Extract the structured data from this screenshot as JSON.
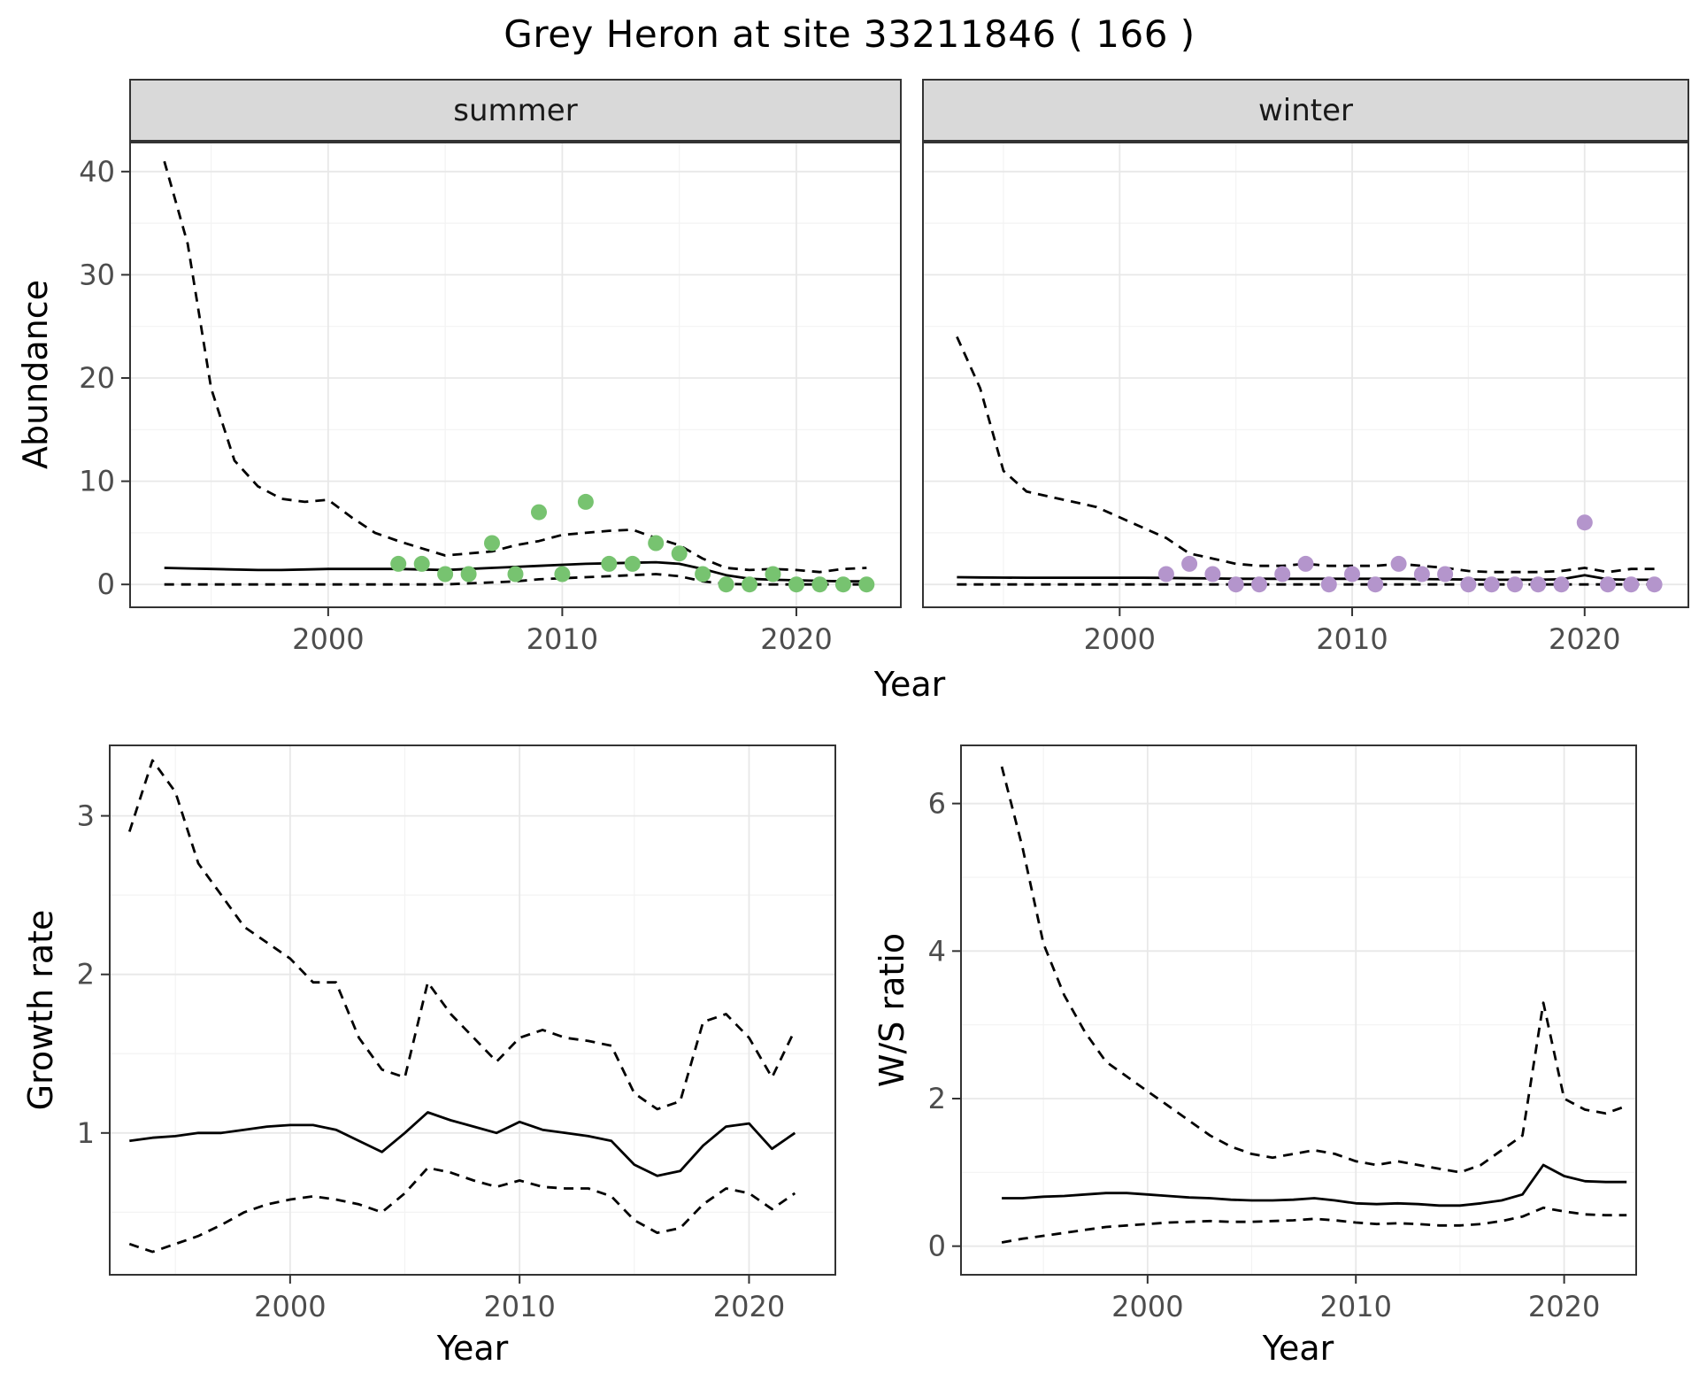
{
  "title": "Grey Heron at site 33211846 ( 166 )",
  "labels": {
    "facet_summer": "summer",
    "facet_winter": "winter",
    "abundance": "Abundance",
    "year": "Year",
    "growth_rate": "Growth rate",
    "ws_ratio": "W/S ratio"
  },
  "colors": {
    "summer_point": "#77c370",
    "winter_point": "#b495cc",
    "line": "#000000",
    "grid_major": "#e8e8e8",
    "grid_minor": "#f3f3f3",
    "strip_bg": "#d9d9d9",
    "border": "#333333",
    "tick_text": "#4d4d4d"
  },
  "chart_data": [
    {
      "id": "abundance_summer",
      "type": "line",
      "facet": "summer",
      "ylabel": "Abundance",
      "xlabel": "Year",
      "xlim": [
        1991.5,
        2024.5
      ],
      "ylim": [
        -2.3,
        42.9
      ],
      "xticks": [
        2000,
        2010,
        2020
      ],
      "yticks": [
        0,
        10,
        20,
        30,
        40
      ],
      "xticks_minor": [
        1995,
        2005,
        2015
      ],
      "yticks_minor": [
        5,
        15,
        25,
        35
      ],
      "years": [
        1993,
        1994,
        1995,
        1996,
        1997,
        1998,
        1999,
        2000,
        2001,
        2002,
        2003,
        2004,
        2005,
        2006,
        2007,
        2008,
        2009,
        2010,
        2011,
        2012,
        2013,
        2014,
        2015,
        2016,
        2017,
        2018,
        2019,
        2020,
        2021,
        2022,
        2023
      ],
      "series": [
        {
          "name": "upper_ci",
          "style": "dashed",
          "values": [
            41,
            33,
            19,
            12,
            9.5,
            8.3,
            8.0,
            8.2,
            6.5,
            5.0,
            4.2,
            3.5,
            2.8,
            3.0,
            3.2,
            3.8,
            4.2,
            4.8,
            5.0,
            5.2,
            5.3,
            4.5,
            3.8,
            2.5,
            1.6,
            1.4,
            1.5,
            1.4,
            1.2,
            1.5,
            1.6
          ]
        },
        {
          "name": "mean",
          "style": "solid",
          "values": [
            1.6,
            1.55,
            1.5,
            1.45,
            1.4,
            1.4,
            1.45,
            1.5,
            1.5,
            1.5,
            1.5,
            1.45,
            1.4,
            1.5,
            1.6,
            1.7,
            1.8,
            1.9,
            2.0,
            2.05,
            2.1,
            2.15,
            2.0,
            1.5,
            0.9,
            0.55,
            0.45,
            0.4,
            0.35,
            0.3,
            0.3
          ]
        },
        {
          "name": "lower_ci",
          "style": "dashed",
          "values": [
            0,
            0,
            0,
            0,
            0,
            0,
            0,
            0,
            0,
            0,
            0,
            0,
            0,
            0.1,
            0.2,
            0.3,
            0.5,
            0.6,
            0.7,
            0.8,
            0.9,
            1.0,
            0.8,
            0.3,
            0.05,
            0,
            0,
            0,
            0,
            0,
            0
          ]
        }
      ],
      "points": {
        "name": "observed_counts_summer",
        "color": "#77c370",
        "years": [
          2003,
          2004,
          2005,
          2006,
          2007,
          2008,
          2009,
          2010,
          2011,
          2012,
          2013,
          2014,
          2015,
          2016,
          2017,
          2018,
          2019,
          2020,
          2021,
          2022,
          2023
        ],
        "values": [
          2,
          2,
          1,
          1,
          4,
          1,
          7,
          1,
          8,
          2,
          2,
          4,
          3,
          1,
          0,
          0,
          1,
          0,
          0,
          0,
          0
        ]
      }
    },
    {
      "id": "abundance_winter",
      "type": "line",
      "facet": "winter",
      "ylabel": "Abundance",
      "xlabel": "Year",
      "xlim": [
        1991.5,
        2024.5
      ],
      "ylim": [
        -2.3,
        42.9
      ],
      "xticks": [
        2000,
        2010,
        2020
      ],
      "yticks": [
        0,
        10,
        20,
        30,
        40
      ],
      "xticks_minor": [
        1995,
        2005,
        2015
      ],
      "yticks_minor": [
        5,
        15,
        25,
        35
      ],
      "years": [
        1993,
        1994,
        1995,
        1996,
        1997,
        1998,
        1999,
        2000,
        2001,
        2002,
        2003,
        2004,
        2005,
        2006,
        2007,
        2008,
        2009,
        2010,
        2011,
        2012,
        2013,
        2014,
        2015,
        2016,
        2017,
        2018,
        2019,
        2020,
        2021,
        2022,
        2023
      ],
      "series": [
        {
          "name": "upper_ci",
          "style": "dashed",
          "values": [
            24,
            19,
            11,
            9,
            8.5,
            8,
            7.5,
            6.5,
            5.5,
            4.5,
            3,
            2.5,
            2,
            1.8,
            1.8,
            2,
            1.8,
            1.8,
            1.8,
            2,
            1.8,
            1.6,
            1.3,
            1.2,
            1.2,
            1.2,
            1.3,
            1.6,
            1.2,
            1.5,
            1.5
          ]
        },
        {
          "name": "mean",
          "style": "solid",
          "values": [
            0.7,
            0.68,
            0.66,
            0.65,
            0.65,
            0.65,
            0.65,
            0.65,
            0.65,
            0.63,
            0.6,
            0.58,
            0.55,
            0.55,
            0.55,
            0.55,
            0.55,
            0.55,
            0.55,
            0.55,
            0.52,
            0.5,
            0.48,
            0.45,
            0.45,
            0.45,
            0.5,
            0.9,
            0.5,
            0.45,
            0.45
          ]
        },
        {
          "name": "lower_ci",
          "style": "dashed",
          "values": [
            0,
            0,
            0,
            0,
            0,
            0,
            0,
            0,
            0,
            0,
            0,
            0,
            0,
            0,
            0,
            0,
            0,
            0,
            0,
            0,
            0,
            0,
            0,
            0,
            0,
            0,
            0,
            0,
            0,
            0,
            0
          ]
        }
      ],
      "points": {
        "name": "observed_counts_winter",
        "color": "#b495cc",
        "years": [
          2002,
          2003,
          2004,
          2005,
          2006,
          2007,
          2008,
          2009,
          2010,
          2011,
          2012,
          2013,
          2014,
          2015,
          2016,
          2017,
          2018,
          2019,
          2020,
          2021,
          2022,
          2023
        ],
        "values": [
          1,
          2,
          1,
          0,
          0,
          1,
          2,
          0,
          1,
          0,
          2,
          1,
          1,
          0,
          0,
          0,
          0,
          0,
          6,
          0,
          0,
          0
        ]
      }
    },
    {
      "id": "growth_rate",
      "type": "line",
      "ylabel": "Growth rate",
      "xlabel": "Year",
      "xlim": [
        1992.1,
        2023.8
      ],
      "ylim": [
        0.1,
        3.45
      ],
      "xticks": [
        2000,
        2010,
        2020
      ],
      "yticks": [
        1,
        2,
        3
      ],
      "xticks_minor": [
        1995,
        2005,
        2015
      ],
      "yticks_minor": [
        0.5,
        1.5,
        2.5
      ],
      "years": [
        1993,
        1994,
        1995,
        1996,
        1997,
        1998,
        1999,
        2000,
        2001,
        2002,
        2003,
        2004,
        2005,
        2006,
        2007,
        2008,
        2009,
        2010,
        2011,
        2012,
        2013,
        2014,
        2015,
        2016,
        2017,
        2018,
        2019,
        2020,
        2021,
        2022
      ],
      "series": [
        {
          "name": "upper_ci",
          "style": "dashed",
          "values": [
            2.9,
            3.35,
            3.15,
            2.7,
            2.5,
            2.3,
            2.2,
            2.1,
            1.95,
            1.95,
            1.6,
            1.4,
            1.35,
            1.95,
            1.75,
            1.6,
            1.45,
            1.6,
            1.65,
            1.6,
            1.58,
            1.55,
            1.25,
            1.15,
            1.2,
            1.7,
            1.75,
            1.6,
            1.35,
            1.65
          ]
        },
        {
          "name": "mean",
          "style": "solid",
          "values": [
            0.95,
            0.97,
            0.98,
            1.0,
            1.0,
            1.02,
            1.04,
            1.05,
            1.05,
            1.02,
            0.95,
            0.88,
            1.0,
            1.13,
            1.08,
            1.04,
            1.0,
            1.07,
            1.02,
            1.0,
            0.98,
            0.95,
            0.8,
            0.73,
            0.76,
            0.92,
            1.04,
            1.06,
            0.9,
            1.0
          ]
        },
        {
          "name": "lower_ci",
          "style": "dashed",
          "values": [
            0.3,
            0.25,
            0.3,
            0.35,
            0.42,
            0.5,
            0.55,
            0.58,
            0.6,
            0.58,
            0.55,
            0.5,
            0.62,
            0.78,
            0.75,
            0.7,
            0.66,
            0.7,
            0.66,
            0.65,
            0.65,
            0.6,
            0.45,
            0.37,
            0.4,
            0.55,
            0.65,
            0.62,
            0.52,
            0.62
          ]
        }
      ]
    },
    {
      "id": "ws_ratio",
      "type": "line",
      "ylabel": "W/S ratio",
      "xlabel": "Year",
      "xlim": [
        1991.0,
        2023.5
      ],
      "ylim": [
        -0.4,
        6.8
      ],
      "xticks": [
        2000,
        2010,
        2020
      ],
      "yticks": [
        0,
        2,
        4,
        6
      ],
      "xticks_minor": [
        1995,
        2005,
        2015
      ],
      "yticks_minor": [
        1,
        3,
        5
      ],
      "years": [
        1993,
        1994,
        1995,
        1996,
        1997,
        1998,
        1999,
        2000,
        2001,
        2002,
        2003,
        2004,
        2005,
        2006,
        2007,
        2008,
        2009,
        2010,
        2011,
        2012,
        2013,
        2014,
        2015,
        2016,
        2017,
        2018,
        2019,
        2020,
        2021,
        2022,
        2023
      ],
      "series": [
        {
          "name": "upper_ci",
          "style": "dashed",
          "values": [
            6.5,
            5.4,
            4.1,
            3.4,
            2.9,
            2.5,
            2.3,
            2.1,
            1.9,
            1.7,
            1.5,
            1.35,
            1.25,
            1.2,
            1.25,
            1.3,
            1.25,
            1.15,
            1.1,
            1.15,
            1.1,
            1.05,
            1.0,
            1.1,
            1.3,
            1.5,
            3.3,
            2.0,
            1.85,
            1.8,
            1.9
          ]
        },
        {
          "name": "mean",
          "style": "solid",
          "values": [
            0.65,
            0.65,
            0.67,
            0.68,
            0.7,
            0.72,
            0.72,
            0.7,
            0.68,
            0.66,
            0.65,
            0.63,
            0.62,
            0.62,
            0.63,
            0.65,
            0.62,
            0.58,
            0.57,
            0.58,
            0.57,
            0.55,
            0.55,
            0.58,
            0.62,
            0.7,
            1.1,
            0.95,
            0.88,
            0.87,
            0.87
          ]
        },
        {
          "name": "lower_ci",
          "style": "dashed",
          "values": [
            0.05,
            0.1,
            0.14,
            0.18,
            0.22,
            0.26,
            0.28,
            0.3,
            0.32,
            0.33,
            0.34,
            0.33,
            0.33,
            0.34,
            0.35,
            0.37,
            0.35,
            0.32,
            0.3,
            0.31,
            0.3,
            0.28,
            0.28,
            0.3,
            0.34,
            0.4,
            0.52,
            0.47,
            0.43,
            0.42,
            0.42
          ]
        }
      ]
    }
  ]
}
